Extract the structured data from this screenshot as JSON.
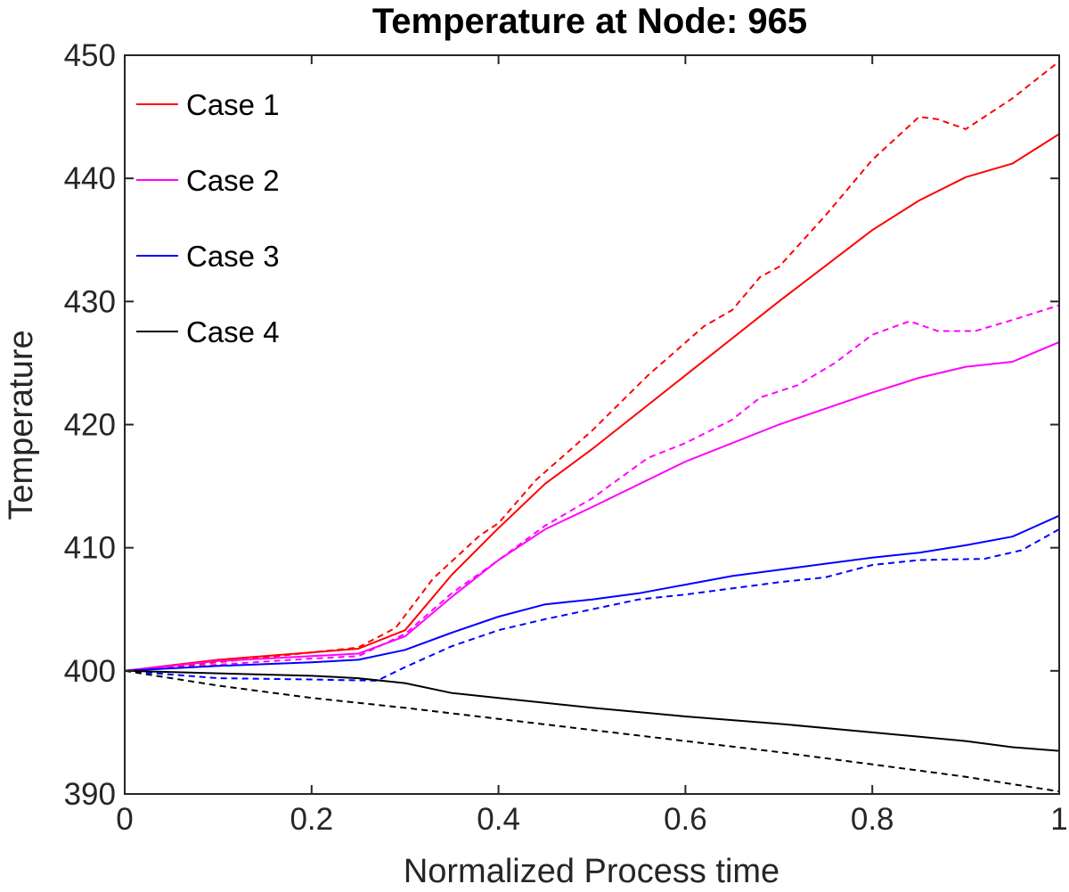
{
  "chart_data": {
    "type": "line",
    "title": "Temperature at Node: 965",
    "xlabel": "Normalized Process time",
    "ylabel": "Temperature",
    "xlim": [
      0,
      1
    ],
    "ylim": [
      390,
      450
    ],
    "xticks": [
      0,
      0.2,
      0.4,
      0.6,
      0.8,
      1
    ],
    "xtick_labels": [
      "0",
      "0.2",
      "0.4",
      "0.6",
      "0.8",
      "1"
    ],
    "yticks": [
      390,
      400,
      410,
      420,
      430,
      440,
      450
    ],
    "ytick_labels": [
      "390",
      "400",
      "410",
      "420",
      "430",
      "440",
      "450"
    ],
    "legend_position": "top-left",
    "grid": false,
    "series": [
      {
        "name": "Case 1",
        "style": "solid",
        "color": "#ff0000",
        "in_legend": true,
        "points": [
          [
            0,
            400
          ],
          [
            0.1,
            400.9
          ],
          [
            0.2,
            401.5
          ],
          [
            0.25,
            401.8
          ],
          [
            0.3,
            403.3
          ],
          [
            0.35,
            407.8
          ],
          [
            0.4,
            411.6
          ],
          [
            0.45,
            415.2
          ],
          [
            0.5,
            418
          ],
          [
            0.6,
            424
          ],
          [
            0.7,
            430
          ],
          [
            0.8,
            435.8
          ],
          [
            0.85,
            438.2
          ],
          [
            0.9,
            440.1
          ],
          [
            0.95,
            441.2
          ],
          [
            1,
            443.6
          ]
        ]
      },
      {
        "name": "Case 1",
        "style": "dashed",
        "color": "#ff0000",
        "in_legend": false,
        "points": [
          [
            0,
            400
          ],
          [
            0.1,
            400.7
          ],
          [
            0.2,
            401.5
          ],
          [
            0.25,
            401.9
          ],
          [
            0.29,
            403.5
          ],
          [
            0.33,
            407.5
          ],
          [
            0.38,
            411
          ],
          [
            0.4,
            412
          ],
          [
            0.44,
            415.5
          ],
          [
            0.5,
            419.5
          ],
          [
            0.56,
            424
          ],
          [
            0.62,
            428
          ],
          [
            0.65,
            429.3
          ],
          [
            0.68,
            432
          ],
          [
            0.7,
            432.8
          ],
          [
            0.75,
            437
          ],
          [
            0.8,
            441.5
          ],
          [
            0.85,
            445
          ],
          [
            0.87,
            444.8
          ],
          [
            0.9,
            444
          ],
          [
            0.95,
            446.5
          ],
          [
            1,
            449.5
          ]
        ]
      },
      {
        "name": "Case 2",
        "style": "solid",
        "color": "#ff00ff",
        "in_legend": true,
        "points": [
          [
            0,
            400
          ],
          [
            0.1,
            400.8
          ],
          [
            0.2,
            401.2
          ],
          [
            0.25,
            401.4
          ],
          [
            0.3,
            402.8
          ],
          [
            0.35,
            406
          ],
          [
            0.4,
            409
          ],
          [
            0.45,
            411.5
          ],
          [
            0.5,
            413.3
          ],
          [
            0.6,
            417
          ],
          [
            0.7,
            420
          ],
          [
            0.8,
            422.6
          ],
          [
            0.85,
            423.8
          ],
          [
            0.9,
            424.7
          ],
          [
            0.95,
            425.1
          ],
          [
            1,
            426.7
          ]
        ]
      },
      {
        "name": "Case 2",
        "style": "dashed",
        "color": "#ff00ff",
        "in_legend": false,
        "points": [
          [
            0,
            400
          ],
          [
            0.1,
            400.5
          ],
          [
            0.2,
            401
          ],
          [
            0.25,
            401.2
          ],
          [
            0.3,
            403
          ],
          [
            0.35,
            406.3
          ],
          [
            0.4,
            409
          ],
          [
            0.45,
            411.8
          ],
          [
            0.5,
            414
          ],
          [
            0.56,
            417.3
          ],
          [
            0.6,
            418.5
          ],
          [
            0.65,
            420.4
          ],
          [
            0.68,
            422.2
          ],
          [
            0.72,
            423.2
          ],
          [
            0.76,
            425
          ],
          [
            0.8,
            427.3
          ],
          [
            0.84,
            428.4
          ],
          [
            0.87,
            427.6
          ],
          [
            0.91,
            427.6
          ],
          [
            0.95,
            428.5
          ],
          [
            1,
            429.7
          ]
        ]
      },
      {
        "name": "Case 3",
        "style": "solid",
        "color": "#0000ff",
        "in_legend": true,
        "points": [
          [
            0,
            400
          ],
          [
            0.1,
            400.4
          ],
          [
            0.2,
            400.7
          ],
          [
            0.25,
            400.9
          ],
          [
            0.3,
            401.7
          ],
          [
            0.35,
            403.1
          ],
          [
            0.4,
            404.4
          ],
          [
            0.45,
            405.4
          ],
          [
            0.5,
            405.8
          ],
          [
            0.55,
            406.3
          ],
          [
            0.6,
            407
          ],
          [
            0.65,
            407.7
          ],
          [
            0.7,
            408.2
          ],
          [
            0.8,
            409.2
          ],
          [
            0.85,
            409.6
          ],
          [
            0.9,
            410.2
          ],
          [
            0.95,
            410.9
          ],
          [
            1,
            412.6
          ]
        ]
      },
      {
        "name": "Case 3",
        "style": "dashed",
        "color": "#0000ff",
        "in_legend": false,
        "points": [
          [
            0,
            400
          ],
          [
            0.1,
            399.4
          ],
          [
            0.2,
            399.3
          ],
          [
            0.27,
            399.2
          ],
          [
            0.3,
            400.3
          ],
          [
            0.35,
            402
          ],
          [
            0.4,
            403.3
          ],
          [
            0.45,
            404.2
          ],
          [
            0.5,
            405
          ],
          [
            0.55,
            405.8
          ],
          [
            0.6,
            406.2
          ],
          [
            0.7,
            407.2
          ],
          [
            0.75,
            407.6
          ],
          [
            0.8,
            408.6
          ],
          [
            0.85,
            409
          ],
          [
            0.92,
            409.1
          ],
          [
            0.96,
            409.8
          ],
          [
            1,
            411.5
          ]
        ]
      },
      {
        "name": "Case 4",
        "style": "solid",
        "color": "#000000",
        "in_legend": true,
        "points": [
          [
            0,
            400
          ],
          [
            0.1,
            399.8
          ],
          [
            0.2,
            399.6
          ],
          [
            0.25,
            399.4
          ],
          [
            0.3,
            399
          ],
          [
            0.35,
            398.2
          ],
          [
            0.4,
            397.8
          ],
          [
            0.5,
            397
          ],
          [
            0.6,
            396.3
          ],
          [
            0.7,
            395.7
          ],
          [
            0.8,
            395
          ],
          [
            0.9,
            394.3
          ],
          [
            0.95,
            393.8
          ],
          [
            1,
            393.5
          ]
        ]
      },
      {
        "name": "Case 4",
        "style": "dashed",
        "color": "#000000",
        "in_legend": false,
        "points": [
          [
            0,
            400
          ],
          [
            0.1,
            398.8
          ],
          [
            0.2,
            397.8
          ],
          [
            0.3,
            397
          ],
          [
            0.4,
            396.1
          ],
          [
            0.5,
            395.2
          ],
          [
            0.6,
            394.3
          ],
          [
            0.7,
            393.4
          ],
          [
            0.8,
            392.4
          ],
          [
            0.9,
            391.4
          ],
          [
            1,
            390.2
          ]
        ]
      }
    ]
  }
}
